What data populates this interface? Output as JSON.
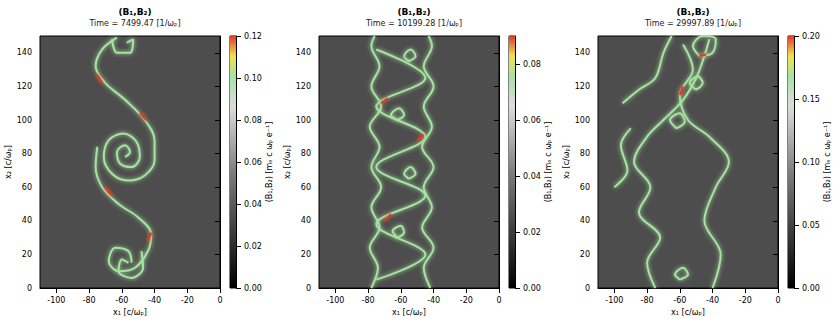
{
  "chart_data": [
    {
      "type": "line",
      "title": "(B₁,B₂)",
      "subtitle": "Time = 7499.47 [1/ωₚ]",
      "x_label": "x₁ [c/ωₚ]",
      "y_label": "x₂ [c/ωₚ]",
      "xlim": [
        -110,
        0
      ],
      "xticks": [
        -100,
        -80,
        -60,
        -40,
        -20,
        0
      ],
      "ylim": [
        0,
        150
      ],
      "yticks": [
        0,
        20,
        40,
        60,
        80,
        100,
        120,
        140
      ],
      "grid": false,
      "colorbar": {
        "label": "(B₁,B₂) [mₑ c ωₚ e⁻¹]",
        "range": [
          0,
          0.12
        ],
        "ticks": [
          {
            "value": 0,
            "label": "0.00"
          },
          {
            "value": 0.02,
            "label": "0.02"
          },
          {
            "value": 0.04,
            "label": "0.04"
          },
          {
            "value": 0.06,
            "label": "0.06"
          },
          {
            "value": 0.08,
            "label": "0.08"
          },
          {
            "value": 0.1,
            "label": "0.10"
          },
          {
            "value": 0.12,
            "label": "0.12"
          }
        ]
      },
      "series": [
        {
          "color": "#a6e3a1",
          "values": [
            [
              -58,
              78
            ],
            [
              -55,
              81
            ],
            [
              -58,
              85
            ],
            [
              -63,
              81
            ],
            [
              -61,
              74
            ],
            [
              -54,
              72
            ],
            [
              -49,
              78
            ],
            [
              -51,
              87
            ],
            [
              -59,
              92
            ],
            [
              -68,
              88
            ],
            [
              -71,
              78
            ],
            [
              -66,
              68
            ],
            [
              -56,
              64
            ],
            [
              -46,
              67
            ],
            [
              -40,
              76
            ],
            [
              -40,
              88
            ],
            [
              -46,
              100
            ],
            [
              -58,
              112
            ],
            [
              -70,
              122
            ],
            [
              -76,
              132
            ],
            [
              -72,
              142
            ],
            [
              -63,
              149
            ]
          ]
        },
        {
          "color": "#a6e3a1",
          "values": [
            [
              -75,
              84
            ],
            [
              -76,
              72
            ],
            [
              -72,
              60
            ],
            [
              -62,
              50
            ],
            [
              -50,
              42
            ],
            [
              -42,
              32
            ],
            [
              -44,
              22
            ],
            [
              -52,
              12
            ],
            [
              -62,
              10
            ],
            [
              -68,
              16
            ],
            [
              -64,
              24
            ],
            [
              -56,
              22
            ],
            [
              -54,
              15
            ]
          ]
        },
        {
          "color": "#a6e3a1",
          "values": [
            [
              -57,
              146
            ],
            [
              -53,
              148
            ],
            [
              -55,
              140
            ],
            [
              -63,
              140
            ],
            [
              -66,
              148
            ]
          ]
        },
        {
          "color": "#a6e3a1",
          "values": [
            [
              -56,
              15
            ],
            [
              -60,
              17
            ],
            [
              -62,
              10
            ],
            [
              -54,
              6
            ],
            [
              -47,
              12
            ],
            [
              -48,
              22
            ]
          ]
        },
        {
          "color": "#e03b2b",
          "values": [
            [
              -45,
              100
            ],
            [
              -49,
              104
            ]
          ]
        },
        {
          "color": "#e03b2b",
          "values": [
            [
              -70,
              60
            ],
            [
              -66,
              55
            ]
          ]
        },
        {
          "color": "#e03b2b",
          "values": [
            [
              -44,
              28
            ],
            [
              -42,
              33
            ]
          ]
        },
        {
          "color": "#e03b2b",
          "values": [
            [
              -72,
              122
            ],
            [
              -75,
              127
            ]
          ]
        }
      ]
    },
    {
      "type": "line",
      "title": "(B₁,B₂)",
      "subtitle": "Time = 10199.28 [1/ωₚ]",
      "x_label": "x₁ [c/ωₚ]",
      "y_label": "x₂ [c/ωₚ]",
      "xlim": [
        -110,
        0
      ],
      "xticks": [
        -100,
        -80,
        -60,
        -40,
        -20,
        0
      ],
      "ylim": [
        0,
        150
      ],
      "yticks": [
        0,
        20,
        40,
        60,
        80,
        100,
        120,
        140
      ],
      "grid": false,
      "colorbar": {
        "label": "(B₁,B₂) [mₑ c ωₚ e⁻¹]",
        "range": [
          0,
          0.09
        ],
        "ticks": [
          {
            "value": 0,
            "label": "0.00"
          },
          {
            "value": 0.02,
            "label": "0.02"
          },
          {
            "value": 0.04,
            "label": "0.04"
          },
          {
            "value": 0.06,
            "label": "0.06"
          },
          {
            "value": 0.08,
            "label": "0.08"
          }
        ]
      },
      "series": [
        {
          "color": "#a6e3a1",
          "values": [
            [
              -78,
              0
            ],
            [
              -74,
              12
            ],
            [
              -79,
              24
            ],
            [
              -73,
              36
            ],
            [
              -78,
              48
            ],
            [
              -72,
              60
            ],
            [
              -78,
              72
            ],
            [
              -73,
              84
            ],
            [
              -79,
              96
            ],
            [
              -72,
              108
            ],
            [
              -78,
              120
            ],
            [
              -73,
              132
            ],
            [
              -78,
              144
            ],
            [
              -76,
              150
            ]
          ]
        },
        {
          "color": "#a6e3a1",
          "values": [
            [
              -42,
              0
            ],
            [
              -46,
              12
            ],
            [
              -40,
              24
            ],
            [
              -47,
              36
            ],
            [
              -41,
              48
            ],
            [
              -46,
              60
            ],
            [
              -40,
              72
            ],
            [
              -47,
              84
            ],
            [
              -41,
              96
            ],
            [
              -46,
              108
            ],
            [
              -40,
              120
            ],
            [
              -46,
              132
            ],
            [
              -41,
              144
            ],
            [
              -43,
              150
            ]
          ]
        },
        {
          "color": "#a6e3a1",
          "values": [
            [
              -75,
              5
            ],
            [
              -45,
              20
            ],
            [
              -75,
              38
            ],
            [
              -45,
              55
            ],
            [
              -75,
              72
            ],
            [
              -45,
              90
            ],
            [
              -75,
              108
            ],
            [
              -45,
              125
            ],
            [
              -75,
              142
            ]
          ]
        },
        {
          "color": "#a6e3a1",
          "values": [
            [
              -62,
              30
            ],
            [
              -58,
              33
            ],
            [
              -60,
              37
            ],
            [
              -65,
              34
            ],
            [
              -62,
              30
            ]
          ]
        },
        {
          "color": "#a6e3a1",
          "values": [
            [
              -55,
              65
            ],
            [
              -51,
              68
            ],
            [
              -54,
              72
            ],
            [
              -58,
              68
            ],
            [
              -55,
              65
            ]
          ]
        },
        {
          "color": "#a6e3a1",
          "values": [
            [
              -62,
              100
            ],
            [
              -58,
              103
            ],
            [
              -61,
              107
            ],
            [
              -66,
              103
            ],
            [
              -62,
              100
            ]
          ]
        },
        {
          "color": "#a6e3a1",
          "values": [
            [
              -55,
              135
            ],
            [
              -51,
              138
            ],
            [
              -54,
              142
            ],
            [
              -58,
              138
            ],
            [
              -55,
              135
            ]
          ]
        },
        {
          "color": "#e03b2b",
          "values": [
            [
              -70,
              40
            ],
            [
              -66,
              44
            ]
          ]
        },
        {
          "color": "#e03b2b",
          "values": [
            [
              -50,
              88
            ],
            [
              -46,
              91
            ]
          ]
        },
        {
          "color": "#e03b2b",
          "values": [
            [
              -72,
              110
            ],
            [
              -68,
              113
            ]
          ]
        }
      ]
    },
    {
      "type": "line",
      "title": "(B₁,B₂)",
      "subtitle": "Time = 29997.89 [1/ωₚ]",
      "x_label": "x₁ [c/ωₚ]",
      "y_label": "x₂ [c/ωₚ]",
      "xlim": [
        -110,
        0
      ],
      "xticks": [
        -100,
        -80,
        -60,
        -40,
        -20,
        0
      ],
      "ylim": [
        0,
        150
      ],
      "yticks": [
        0,
        20,
        40,
        60,
        80,
        100,
        120,
        140
      ],
      "grid": false,
      "colorbar": {
        "label": "(B₁,B₂) [mₑ c ωₚ e⁻¹]",
        "range": [
          0,
          0.2
        ],
        "ticks": [
          {
            "value": 0,
            "label": "0.00"
          },
          {
            "value": 0.05,
            "label": "0.05"
          },
          {
            "value": 0.1,
            "label": "0.10"
          },
          {
            "value": 0.15,
            "label": "0.15"
          },
          {
            "value": 0.2,
            "label": "0.20"
          }
        ]
      },
      "series": [
        {
          "color": "#a6e3a1",
          "values": [
            [
              -75,
              0
            ],
            [
              -80,
              15
            ],
            [
              -72,
              30
            ],
            [
              -85,
              45
            ],
            [
              -78,
              60
            ],
            [
              -88,
              75
            ],
            [
              -80,
              90
            ],
            [
              -70,
              100
            ],
            [
              -58,
              112
            ],
            [
              -50,
              125
            ],
            [
              -45,
              138
            ],
            [
              -42,
              148
            ]
          ]
        },
        {
          "color": "#a6e3a1",
          "values": [
            [
              -40,
              0
            ],
            [
              -35,
              20
            ],
            [
              -45,
              40
            ],
            [
              -38,
              60
            ],
            [
              -30,
              75
            ],
            [
              -42,
              90
            ],
            [
              -55,
              100
            ],
            [
              -60,
              115
            ],
            [
              -52,
              130
            ],
            [
              -58,
              145
            ]
          ]
        },
        {
          "color": "#a6e3a1",
          "values": [
            [
              -62,
              95
            ],
            [
              -57,
              99
            ],
            [
              -60,
              104
            ],
            [
              -66,
              100
            ],
            [
              -62,
              95
            ]
          ]
        },
        {
          "color": "#a6e3a1",
          "values": [
            [
              -50,
              118
            ],
            [
              -46,
              122
            ],
            [
              -49,
              126
            ],
            [
              -54,
              122
            ],
            [
              -50,
              118
            ]
          ]
        },
        {
          "color": "#a6e3a1",
          "values": [
            [
              -48,
              138
            ],
            [
              -40,
              140
            ],
            [
              -38,
              148
            ],
            [
              -46,
              150
            ],
            [
              -52,
              144
            ],
            [
              -48,
              138
            ]
          ]
        },
        {
          "color": "#a6e3a1",
          "values": [
            [
              -95,
              110
            ],
            [
              -85,
              118
            ],
            [
              -75,
              125
            ],
            [
              -70,
              140
            ],
            [
              -65,
              150
            ]
          ]
        },
        {
          "color": "#a6e3a1",
          "values": [
            [
              -100,
              60
            ],
            [
              -92,
              70
            ],
            [
              -96,
              85
            ],
            [
              -90,
              95
            ]
          ]
        },
        {
          "color": "#a6e3a1",
          "values": [
            [
              -60,
              5
            ],
            [
              -55,
              8
            ],
            [
              -58,
              12
            ],
            [
              -63,
              8
            ],
            [
              -60,
              5
            ]
          ]
        },
        {
          "color": "#e03b2b",
          "values": [
            [
              -48,
              138
            ],
            [
              -44,
              139
            ]
          ]
        },
        {
          "color": "#e03b2b",
          "values": [
            [
              -60,
              115
            ],
            [
              -58,
              120
            ]
          ]
        }
      ]
    }
  ]
}
